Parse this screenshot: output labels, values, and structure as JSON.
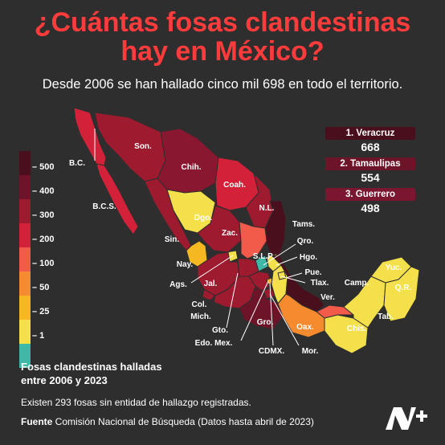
{
  "title_line1": "¿Cuántas fosas clandestinas",
  "title_line2": "hay en México?",
  "subtitle": "Desde 2006 se han hallado cinco mil 698 en todo el territorio.",
  "legend": {
    "stops": [
      {
        "label": "500",
        "color": "#4a0f1d"
      },
      {
        "label": "400",
        "color": "#6e1428"
      },
      {
        "label": "300",
        "color": "#9e1a2e"
      },
      {
        "label": "200",
        "color": "#d4213a"
      },
      {
        "label": "100",
        "color": "#f25a4a"
      },
      {
        "label": "50",
        "color": "#f58a2e"
      },
      {
        "label": "25",
        "color": "#f5b820"
      },
      {
        "label": "1",
        "color": "#f4e04a"
      },
      {
        "label": "",
        "color": "#3fb8a8"
      }
    ],
    "caption_line1": "Fosas clandestinas halladas",
    "caption_line2": "entre 2006 y 2023"
  },
  "ranking": [
    {
      "label": "1. Veracruz",
      "value": "668",
      "color": "#4a0f1d"
    },
    {
      "label": "2. Tamaulipas",
      "value": "554",
      "color": "#6e1428"
    },
    {
      "label": "3. Guerrero",
      "value": "498",
      "color": "#7a1630"
    }
  ],
  "states": [
    {
      "abbr": "B.C.",
      "fill": "#d4213a"
    },
    {
      "abbr": "B.C.S.",
      "fill": "#d4213a"
    },
    {
      "abbr": "Son.",
      "fill": "#9e1a2e"
    },
    {
      "abbr": "Chih.",
      "fill": "#8a1730"
    },
    {
      "abbr": "Coah.",
      "fill": "#d4213a"
    },
    {
      "abbr": "N.L.",
      "fill": "#9e1a2e"
    },
    {
      "abbr": "Tams.",
      "fill": "#4a0f1d"
    },
    {
      "abbr": "Sin.",
      "fill": "#9e1a2e"
    },
    {
      "abbr": "Dgo.",
      "fill": "#f4e04a"
    },
    {
      "abbr": "Zac.",
      "fill": "#9e1a2e"
    },
    {
      "abbr": "Nay.",
      "fill": "#f5b820"
    },
    {
      "abbr": "Ags.",
      "fill": "#f4e04a"
    },
    {
      "abbr": "S.L.P.",
      "fill": "#f25a4a"
    },
    {
      "abbr": "Qro.",
      "fill": "#3fb8a8"
    },
    {
      "abbr": "Hgo.",
      "fill": "#f4e04a"
    },
    {
      "abbr": "Jal.",
      "fill": "#9e1a2e"
    },
    {
      "abbr": "Gto.",
      "fill": "#9e1a2e"
    },
    {
      "abbr": "Col.",
      "fill": "#9e1a2e"
    },
    {
      "abbr": "Mich.",
      "fill": "#9e1a2e"
    },
    {
      "abbr": "Edo. Mex.",
      "fill": "#9e1a2e"
    },
    {
      "abbr": "CDMX.",
      "fill": "#f5b820"
    },
    {
      "abbr": "Mor.",
      "fill": "#9e1a2e"
    },
    {
      "abbr": "Gro.",
      "fill": "#6e1428"
    },
    {
      "abbr": "Pue.",
      "fill": "#f4e04a"
    },
    {
      "abbr": "Tlax.",
      "fill": "#f4e04a"
    },
    {
      "abbr": "Ver.",
      "fill": "#4a0f1d"
    },
    {
      "abbr": "Oax.",
      "fill": "#f58a2e"
    },
    {
      "abbr": "Chis.",
      "fill": "#f4e04a"
    },
    {
      "abbr": "Tab.",
      "fill": "#f25a4a"
    },
    {
      "abbr": "Camp.",
      "fill": "#f4e04a"
    },
    {
      "abbr": "Yuc.",
      "fill": "#f4e04a"
    },
    {
      "abbr": "Q.R.",
      "fill": "#f4e04a"
    }
  ],
  "note": "Existen 293 fosas sin entidad de hallazgo registradas.",
  "source_label": "Fuente",
  "source_text": " Comisión Nacional de Búsqueda (Datos hasta abril de 2023)",
  "logo": "N+"
}
